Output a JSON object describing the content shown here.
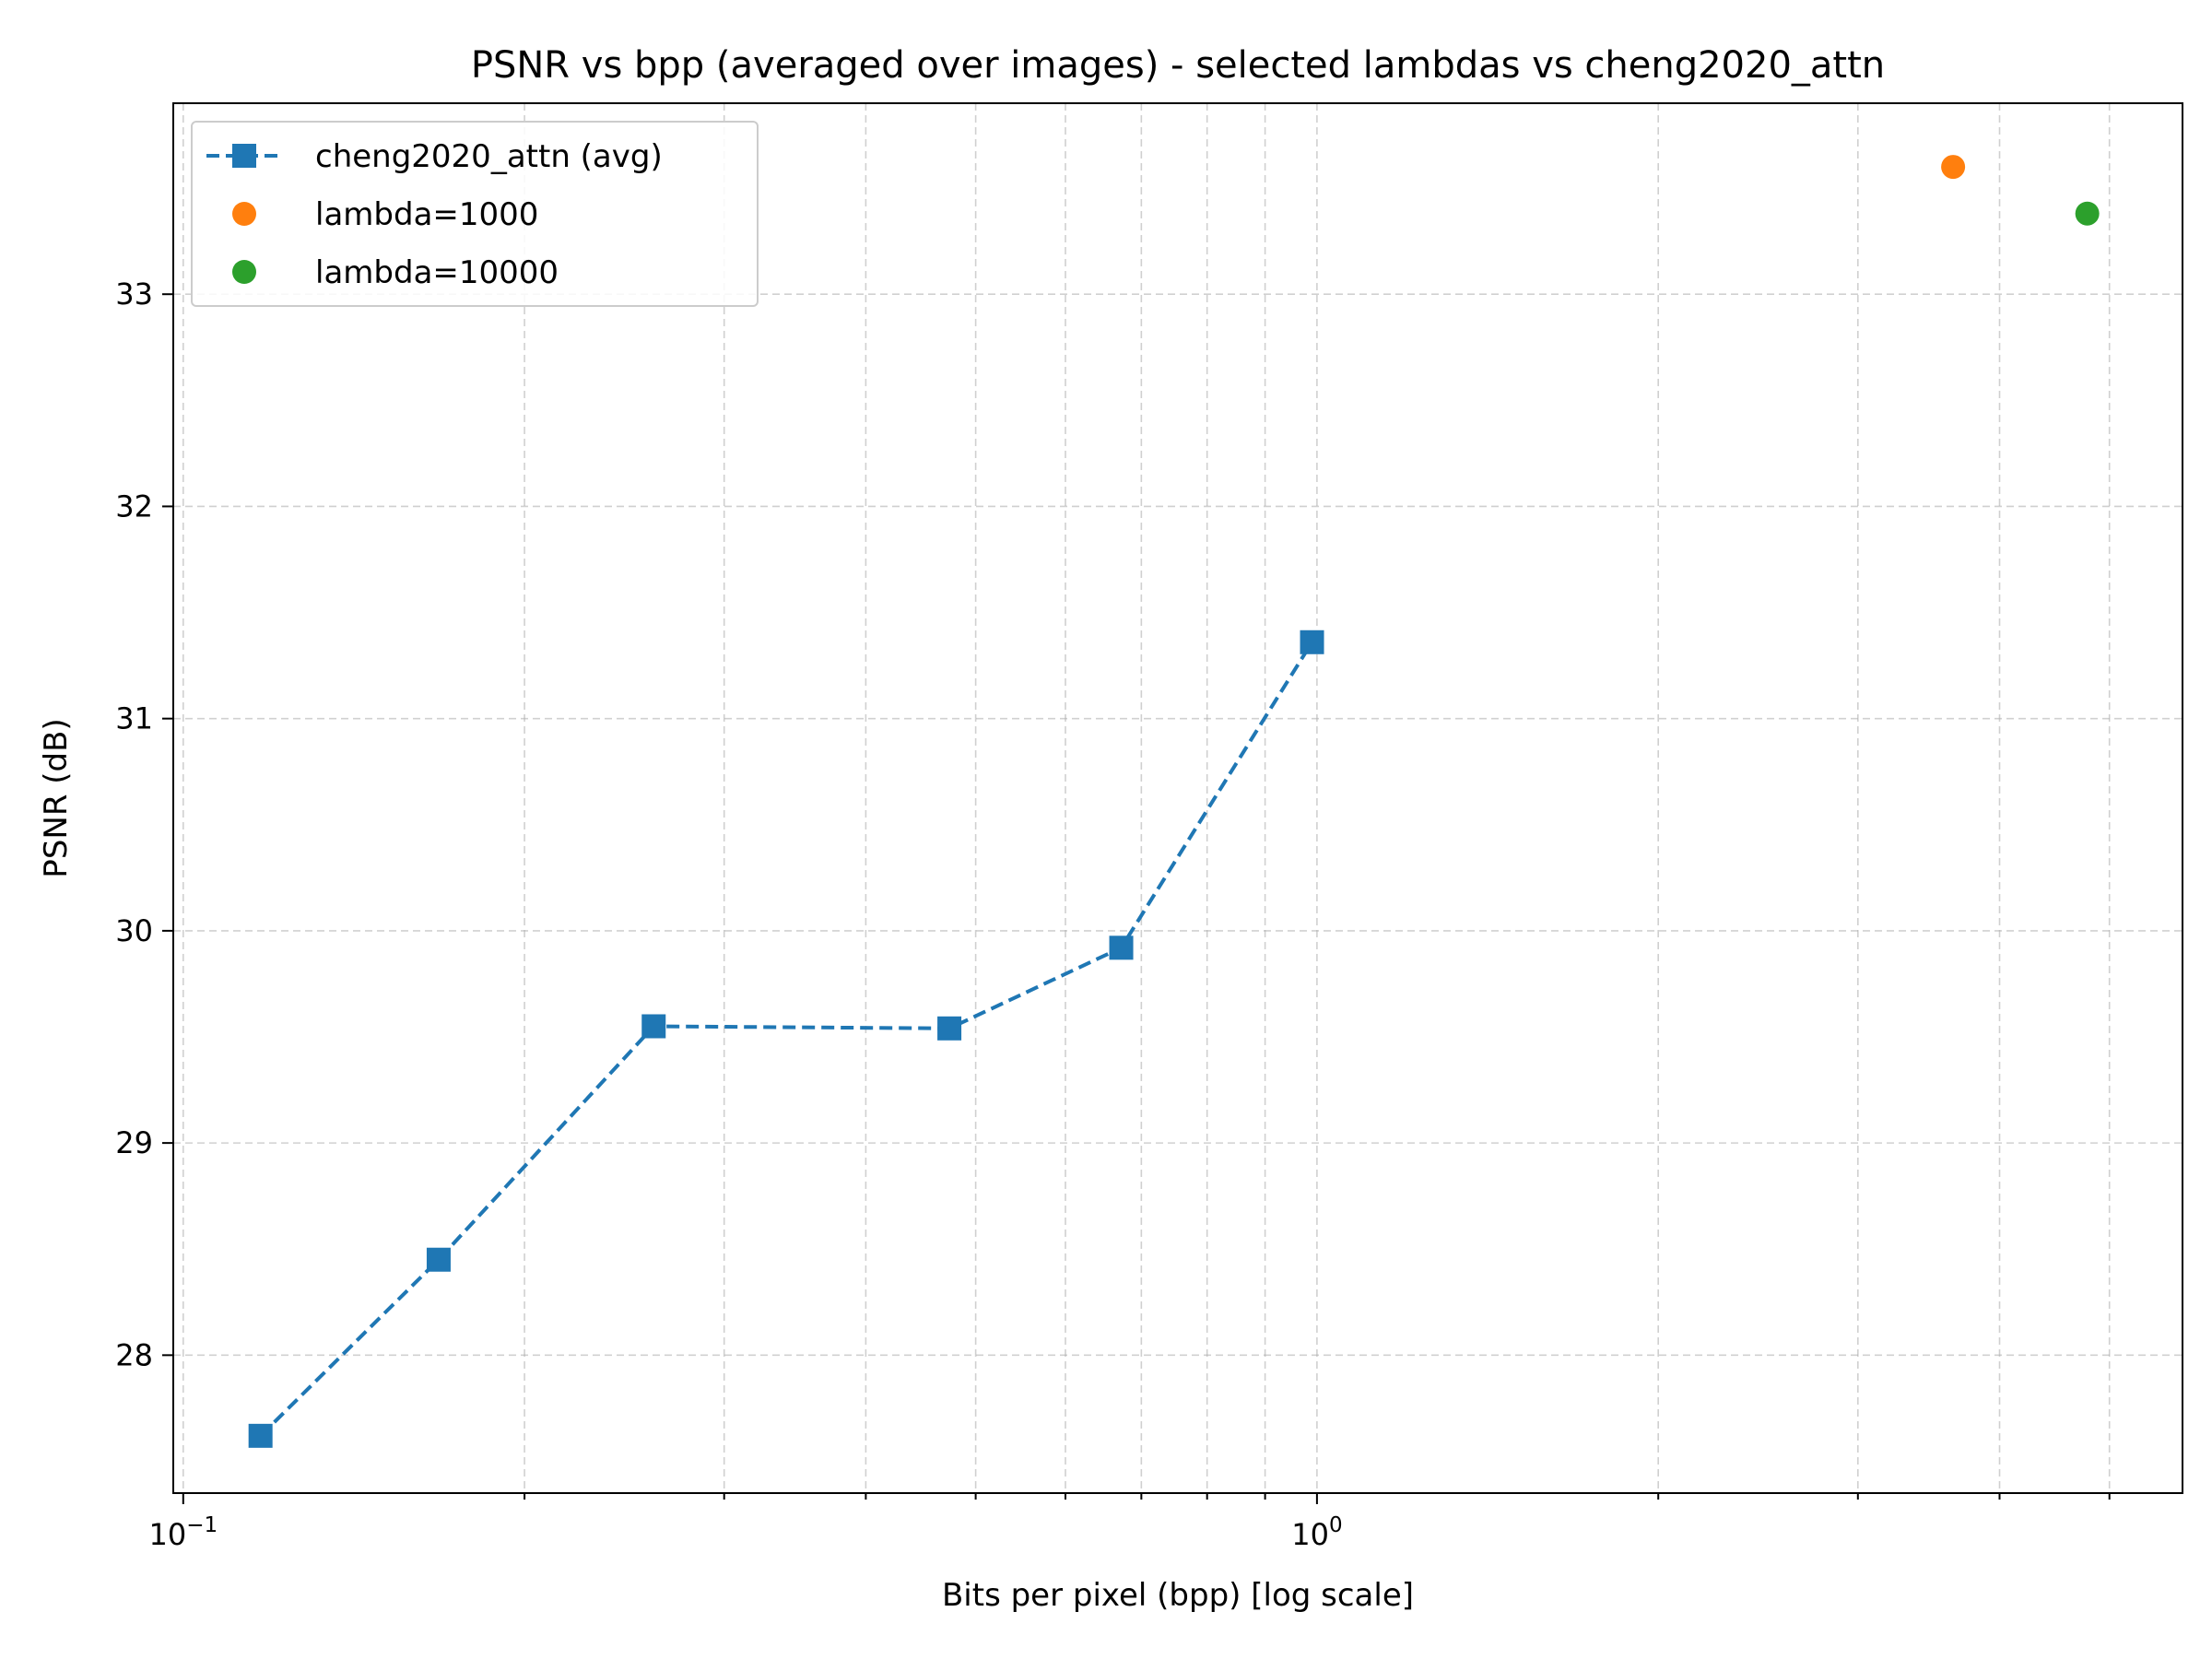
{
  "chart_data": {
    "type": "line",
    "title": "PSNR vs bpp (averaged over images) - selected lambdas vs cheng2020_attn",
    "xlabel": "Bits per pixel (bpp) [log scale]",
    "ylabel": "PSNR (dB)",
    "xscale": "log",
    "xlim": [
      0.098,
      5.8
    ],
    "ylim": [
      27.35,
      33.9
    ],
    "grid": true,
    "legend_position": "top-left",
    "x_ticks": [
      {
        "value": 0.1,
        "base": "10",
        "exp": "−1"
      },
      {
        "value": 1,
        "base": "10",
        "exp": "0"
      }
    ],
    "y_ticks": [
      {
        "value": 28,
        "label": "28"
      },
      {
        "value": 29,
        "label": "29"
      },
      {
        "value": 30,
        "label": "30"
      },
      {
        "value": 31,
        "label": "31"
      },
      {
        "value": 32,
        "label": "32"
      },
      {
        "value": 33,
        "label": "33"
      }
    ],
    "series": [
      {
        "name": "cheng2020_attn (avg)",
        "color": "#1f77b4",
        "marker": "square",
        "line": "dashed",
        "points": [
          {
            "x": 0.117,
            "y": 27.62
          },
          {
            "x": 0.168,
            "y": 28.45
          },
          {
            "x": 0.26,
            "y": 29.55
          },
          {
            "x": 0.474,
            "y": 29.54
          },
          {
            "x": 0.672,
            "y": 29.92
          },
          {
            "x": 0.99,
            "y": 31.36
          }
        ]
      },
      {
        "name": "lambda=1000",
        "color": "#ff7f0e",
        "marker": "circle",
        "line": "none",
        "points": [
          {
            "x": 3.64,
            "y": 33.6
          }
        ]
      },
      {
        "name": "lambda=10000",
        "color": "#2ca02c",
        "marker": "circle",
        "line": "none",
        "points": [
          {
            "x": 4.78,
            "y": 33.38
          }
        ]
      }
    ]
  }
}
